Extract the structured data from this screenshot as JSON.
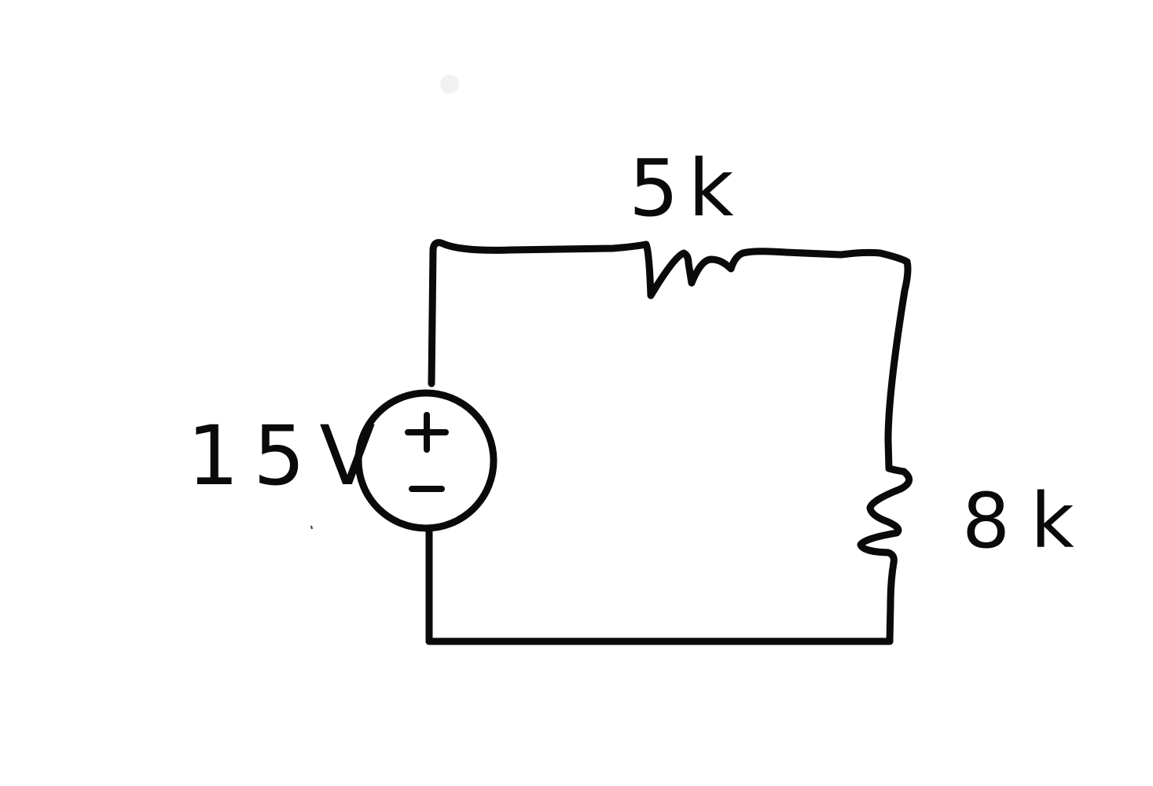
{
  "diagram": {
    "type": "series-circuit",
    "style": "hand-drawn schematic",
    "stroke_color": "#0a0a0a",
    "background": "#ffffff",
    "components": {
      "voltage_source": {
        "label": "15V",
        "plus_symbol": "+",
        "minus_symbol": "–"
      },
      "resistor_top": {
        "label": "5k"
      },
      "resistor_right": {
        "label": "8k"
      }
    }
  }
}
